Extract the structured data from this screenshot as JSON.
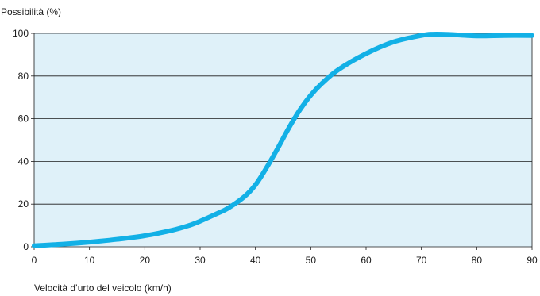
{
  "chart_data": {
    "type": "line",
    "ylabel": "Possibilità (%)",
    "xlabel": "Velocità d’urto del veicolo (km/h)",
    "xlim": [
      0,
      90
    ],
    "ylim": [
      0,
      100
    ],
    "x_ticks": [
      0,
      10,
      20,
      30,
      40,
      50,
      60,
      70,
      80,
      90
    ],
    "y_ticks": [
      0,
      20,
      40,
      60,
      80,
      100
    ],
    "grid": "horizontal",
    "colors": {
      "plot_background": "#dff1f9",
      "line": "#12b0e6",
      "grid": "#1a1a1a"
    },
    "series": [
      {
        "x": [
          0,
          5,
          10,
          15,
          20,
          25,
          28,
          30,
          33,
          35,
          38,
          40,
          42,
          44,
          46,
          48,
          50,
          52,
          55,
          60,
          65,
          70,
          72,
          75,
          80,
          85,
          90
        ],
        "y": [
          0.5,
          1.2,
          2.2,
          3.5,
          5.2,
          7.8,
          10,
          12,
          15.5,
          18,
          23.5,
          29,
          37,
          46,
          55.5,
          64,
          71,
          76.5,
          83,
          90.5,
          96,
          99,
          99.6,
          99.5,
          98.8,
          99,
          99
        ]
      }
    ]
  }
}
